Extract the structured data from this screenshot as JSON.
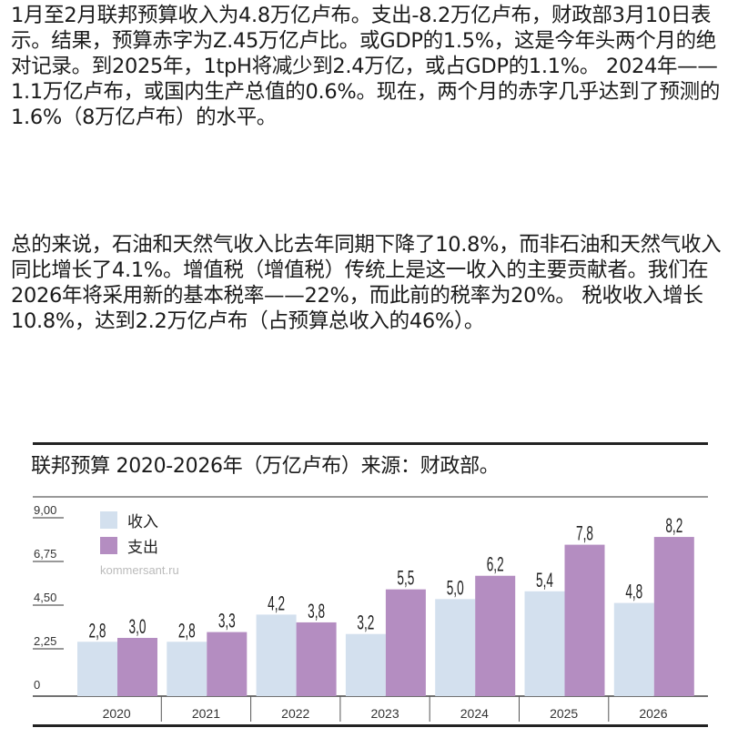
{
  "paragraphs": [
    "1月至2月联邦预算收入为4.8万亿卢布。支出-8.2万亿卢布，财政部3月10日表示。结果，预算赤字为Z.45万亿卢比。或GDP的1.5%，这是今年头两个月的绝对记录。到2025年，1tpH将减少到2.4万亿，或占GDP的1.1%。 2024年——1.1万亿卢布，或国内生产总值的0.6%。现在，两个月的赤字几乎达到了预测的1.6%（8万亿卢布）的水平。",
    "总的来说，石油和天然气收入比去年同期下降了10.8%，而非石油和天然气收入同比增长了4.1%。增值税（增值税）传统上是这一收入的主要贡献者。我们在2026年将采用新的基本税率——22%，而此前的税率为20%。 税收收入增长10.8%，达到2.2万亿卢布（占预算总收入的46%）。"
  ],
  "chart_data": {
    "type": "bar",
    "title": "联邦预算 2020-2026年（万亿卢布）来源：财政部。",
    "watermark": "kommersant.ru",
    "categories": [
      "2020",
      "2021",
      "2022",
      "2023",
      "2024",
      "2025",
      "2026"
    ],
    "series": [
      {
        "name": "收入",
        "color": "#d3e0ee",
        "values": [
          2.8,
          2.8,
          4.2,
          3.2,
          5.0,
          5.4,
          4.8
        ],
        "labels": [
          "2,8",
          "2,8",
          "4,2",
          "3,2",
          "5,0",
          "5,4",
          "4,8"
        ]
      },
      {
        "name": "支出",
        "color": "#b48dc1",
        "values": [
          3.0,
          3.3,
          3.8,
          5.5,
          6.2,
          7.8,
          8.2
        ],
        "labels": [
          "3,0",
          "3,3",
          "3,8",
          "5,5",
          "6,2",
          "7,8",
          "8,2"
        ]
      }
    ],
    "yticks": [
      0,
      2.25,
      4.5,
      6.75,
      9
    ],
    "ytick_labels": [
      "0",
      "2,25",
      "4,50",
      "6,75",
      "9,00"
    ],
    "ylim": [
      0,
      9
    ],
    "legend": "top-left",
    "grid": false
  }
}
